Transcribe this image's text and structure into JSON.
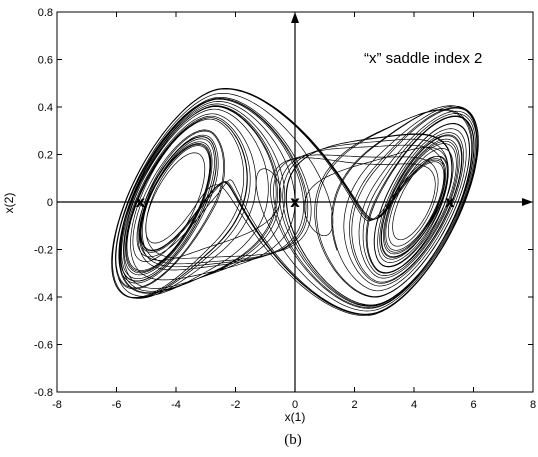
{
  "chart_data": {
    "type": "line",
    "title": "",
    "xlabel": "x(1)",
    "ylabel": "x(2)",
    "xlim": [
      -8,
      8
    ],
    "ylim": [
      -0.8,
      0.8
    ],
    "xticks": [
      -8,
      -6,
      -4,
      -2,
      0,
      2,
      4,
      6,
      8
    ],
    "yticks": [
      -0.8,
      -0.6,
      -0.4,
      -0.2,
      0,
      0.2,
      0.4,
      0.6,
      0.8
    ],
    "xtick_labels": [
      "-8",
      "-6",
      "-4",
      "-2",
      "0",
      "2",
      "4",
      "6",
      "8"
    ],
    "ytick_labels": [
      "-0.8",
      "-0.6",
      "-0.4",
      "-0.2",
      "0",
      "0.2",
      "0.4",
      "0.6",
      "0.8"
    ],
    "grid": false,
    "annotation": "“x”  saddle index 2",
    "caption": "(b)",
    "saddle_marker_symbol": "x",
    "saddle_points": [
      {
        "x": -5.2,
        "y": 0
      },
      {
        "x": 0,
        "y": 0
      },
      {
        "x": 5.2,
        "y": 0
      }
    ],
    "line_color": "#000000"
  }
}
